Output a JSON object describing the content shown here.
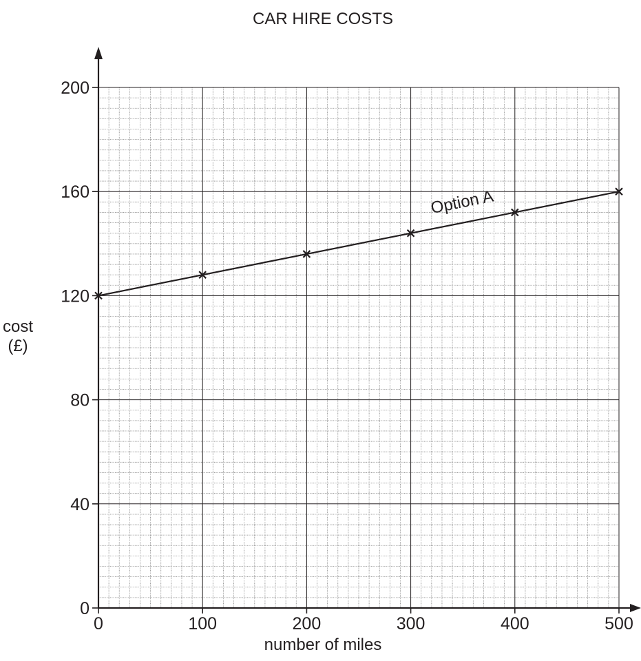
{
  "chart_data": {
    "type": "line",
    "title": "CAR HIRE COSTS",
    "xlabel": "number of miles",
    "ylabel_lines": [
      "cost",
      "(£)"
    ],
    "xlim": [
      0,
      500
    ],
    "ylim": [
      0,
      200
    ],
    "x_ticks": [
      0,
      100,
      200,
      300,
      400,
      500
    ],
    "x_tick_labels": [
      "0",
      "100",
      "200",
      "300",
      "400",
      "500"
    ],
    "y_ticks": [
      0,
      40,
      80,
      120,
      160,
      200
    ],
    "y_tick_labels": [
      "0",
      "40",
      "80",
      "120",
      "160",
      "200"
    ],
    "grid": true,
    "minor_grid_step_x": 10,
    "minor_grid_step_y": 4,
    "major_grid_step_x": 100,
    "major_grid_step_y": 40,
    "series": [
      {
        "name": "Option A",
        "marker": "cross",
        "x": [
          0,
          100,
          200,
          300,
          400,
          500
        ],
        "y": [
          120,
          128,
          136,
          144,
          152,
          160
        ]
      }
    ],
    "annotations": [
      {
        "text": "Option A",
        "x": 390,
        "y": 155
      }
    ]
  },
  "colors": {
    "ink": "#231f20",
    "minor_grid": "#8a8a8a",
    "major_grid": "#231f20",
    "background": "#ffffff"
  }
}
